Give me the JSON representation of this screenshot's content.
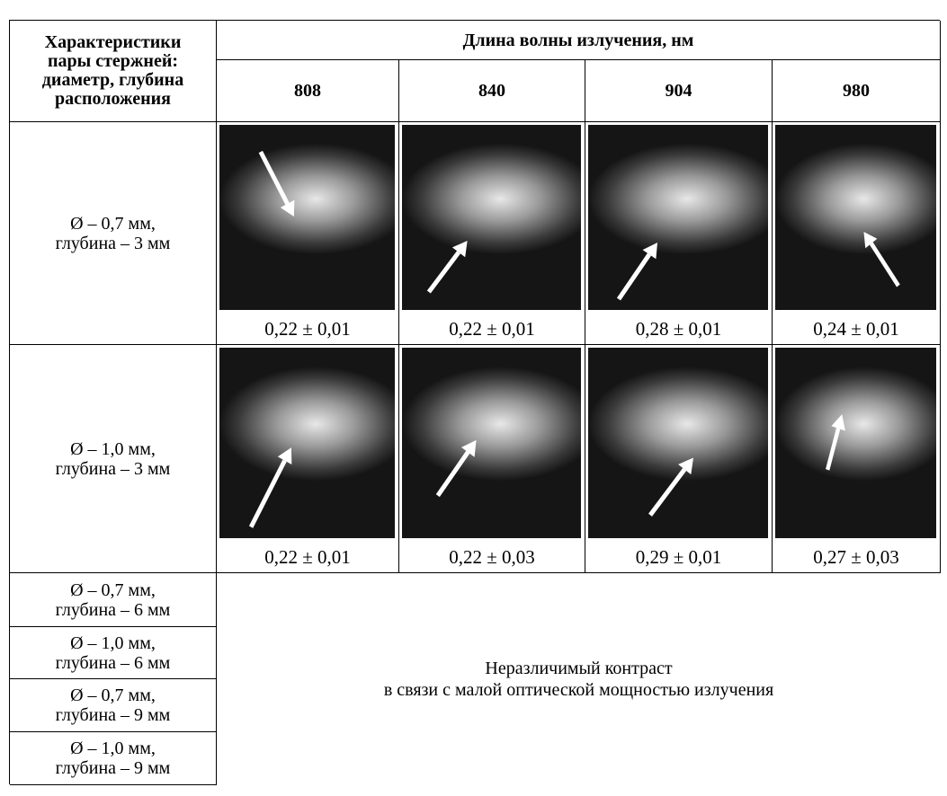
{
  "table": {
    "header": {
      "row_label": [
        "Характеристики",
        "пары стержней:",
        "диаметр, глубина",
        "расположения"
      ],
      "wavelength": "Длина волны излучения, нм",
      "columns": [
        "808",
        "840",
        "904",
        "980"
      ]
    },
    "rows": [
      {
        "label": [
          "Ø – 0,7 мм,",
          "глубина – 3 мм"
        ],
        "values": [
          "0,22 ± 0,01",
          "0,22 ± 0,01",
          "0,28 ± 0,01",
          "0,24 ± 0,01"
        ]
      },
      {
        "label": [
          "Ø – 1,0 мм,",
          "глубина – 3 мм"
        ],
        "values": [
          "0,22 ± 0,01",
          "0,22 ± 0,03",
          "0,29 ± 0,01",
          "0,27 ± 0,03"
        ]
      }
    ],
    "empty_rows": [
      [
        "Ø – 0,7 мм,",
        "глубина – 6 мм"
      ],
      [
        "Ø – 1,0 мм,",
        "глубина – 6 мм"
      ],
      [
        "Ø – 0,7 мм,",
        "глубина – 9 мм"
      ],
      [
        "Ø – 1,0 мм,",
        "глубина – 9 мм"
      ]
    ],
    "note": [
      "Неразличимый контраст",
      "в связи с малой оптической мощностью излучения"
    ]
  }
}
